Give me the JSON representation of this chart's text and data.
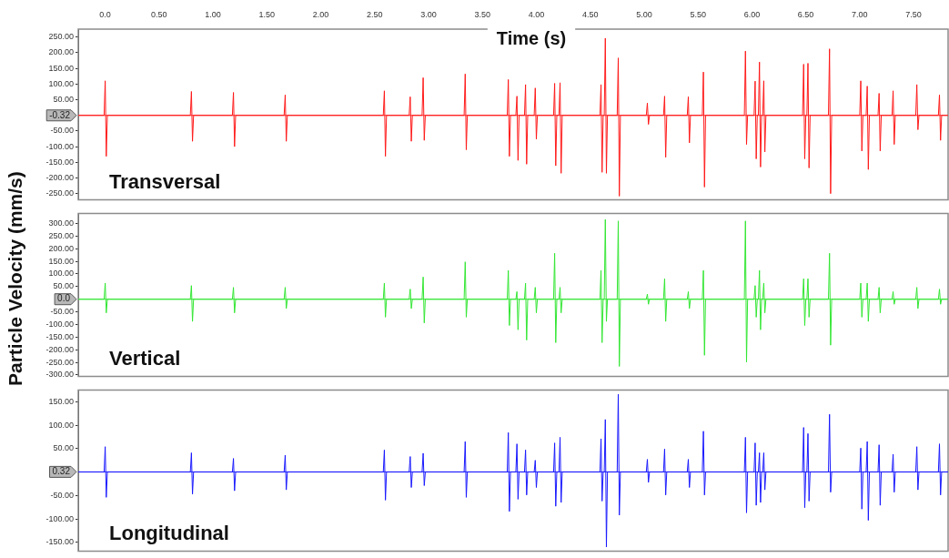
{
  "chart_data": [
    {
      "type": "line",
      "xlabel": "Time (s)",
      "xlim": [
        -0.25,
        7.82
      ],
      "xticks": [
        {
          "value": 0,
          "label": "0.0"
        },
        {
          "value": 0.5,
          "label": "0.50"
        },
        {
          "value": 1,
          "label": "1.00"
        },
        {
          "value": 1.5,
          "label": "1.50"
        },
        {
          "value": 2,
          "label": "2.00"
        },
        {
          "value": 2.5,
          "label": "2.50"
        },
        {
          "value": 3,
          "label": "3.00"
        },
        {
          "value": 3.5,
          "label": "3.50"
        },
        {
          "value": 4,
          "label": "4.00"
        },
        {
          "value": 4.5,
          "label": "4.50"
        },
        {
          "value": 5,
          "label": "5.00"
        },
        {
          "value": 5.5,
          "label": "5.50"
        },
        {
          "value": 6,
          "label": "6.00"
        },
        {
          "value": 6.5,
          "label": "6.50"
        },
        {
          "value": 7,
          "label": "7.00"
        },
        {
          "value": 7.5,
          "label": "7.50"
        }
      ],
      "ylim": [
        -270,
        275
      ],
      "yticks": [
        {
          "value": 250,
          "label": "250.00"
        },
        {
          "value": 200,
          "label": "200.00"
        },
        {
          "value": 150,
          "label": "150.00"
        },
        {
          "value": 100,
          "label": "100.00"
        },
        {
          "value": 50,
          "label": "50.00"
        },
        {
          "value": -50,
          "label": "-50.00"
        },
        {
          "value": -100,
          "label": "-100.00"
        },
        {
          "value": -150,
          "label": "-150.00"
        },
        {
          "value": -200,
          "label": "-200.00"
        },
        {
          "value": -250,
          "label": "-250.00"
        }
      ],
      "ref_lines": [
        {
          "axis": "y",
          "value": -0.32,
          "label": "-0.32",
          "color": "#ff1a1a"
        }
      ],
      "x": [
        -0.25,
        -0.01,
        0,
        0.01,
        0.02,
        0.79,
        0.8,
        0.81,
        0.82,
        1.18,
        1.19,
        1.2,
        1.21,
        1.66,
        1.67,
        1.68,
        1.69,
        2.58,
        2.59,
        2.6,
        2.61,
        2.82,
        2.83,
        2.84,
        2.85,
        2.94,
        2.95,
        2.96,
        2.97,
        3.33,
        3.34,
        3.35,
        3.36,
        3.73,
        3.74,
        3.75,
        3.76,
        3.81,
        3.82,
        3.83,
        3.84,
        3.89,
        3.9,
        3.91,
        3.92,
        3.98,
        3.99,
        4,
        4.01,
        4.16,
        4.17,
        4.18,
        4.19,
        4.21,
        4.22,
        4.23,
        4.24,
        4.59,
        4.6,
        4.61,
        4.62,
        4.63,
        4.64,
        4.65,
        4.66,
        4.75,
        4.76,
        4.77,
        4.78,
        5.02,
        5.03,
        5.04,
        5.05,
        5.18,
        5.19,
        5.2,
        5.21,
        5.4,
        5.41,
        5.42,
        5.43,
        5.54,
        5.55,
        5.56,
        5.57,
        5.93,
        5.94,
        5.95,
        5.96,
        6.02,
        6.03,
        6.04,
        6.05,
        6.06,
        6.07,
        6.08,
        6.09,
        6.1,
        6.11,
        6.12,
        6.13,
        6.47,
        6.48,
        6.49,
        6.5,
        6.51,
        6.52,
        6.53,
        6.54,
        6.71,
        6.72,
        6.73,
        6.74,
        7,
        7.01,
        7.02,
        7.03,
        7.06,
        7.07,
        7.08,
        7.09,
        7.17,
        7.18,
        7.19,
        7.2,
        7.3,
        7.31,
        7.32,
        7.33,
        7.52,
        7.53,
        7.54,
        7.55,
        7.73,
        7.74,
        7.75,
        7.76,
        7.82
      ],
      "series": [
        {
          "name": "Transversal",
          "color": "#ff1a1a",
          "values": [
            0,
            0,
            110,
            -131,
            0,
            0,
            76,
            -83,
            0,
            0,
            73,
            -100,
            0,
            0,
            65,
            -83,
            0,
            0,
            78,
            -131,
            0,
            0,
            59,
            -83,
            0,
            0,
            120,
            -80,
            0,
            0,
            132,
            -110,
            0,
            0,
            114,
            -131,
            0,
            0,
            61,
            -144,
            0,
            0,
            98,
            -156,
            0,
            0,
            87,
            -76,
            0,
            0,
            102,
            -161,
            0,
            0,
            104,
            -185,
            0,
            0,
            98,
            -182,
            0,
            0,
            246,
            -185,
            0,
            0,
            183,
            -258,
            0,
            0,
            39,
            -29,
            0,
            0,
            61,
            -134,
            0,
            0,
            59,
            -88,
            0,
            0,
            138,
            -229,
            0,
            0,
            205,
            -93,
            0,
            0,
            109,
            -139,
            0,
            0,
            170,
            -165,
            0,
            0,
            110,
            -117,
            0,
            0,
            163,
            -139,
            0,
            0,
            166,
            -168,
            0,
            0,
            212,
            -250,
            0,
            0,
            110,
            -114,
            0,
            0,
            93,
            -173,
            0,
            0,
            70,
            -114,
            0,
            0,
            78,
            -93,
            0,
            0,
            98,
            -46,
            0,
            0,
            65,
            -80,
            0,
            0
          ]
        }
      ]
    },
    {
      "type": "line",
      "ylabel": "Particle Velocity (mm/s)",
      "xlim": [
        -0.25,
        7.82
      ],
      "tick_labels": "y",
      "ylim": [
        -306,
        340
      ],
      "yticks": [
        {
          "value": 300,
          "label": "300.00"
        },
        {
          "value": 250,
          "label": "250.00"
        },
        {
          "value": 200,
          "label": "200.00"
        },
        {
          "value": 150,
          "label": "150.00"
        },
        {
          "value": 100,
          "label": "100.00"
        },
        {
          "value": 50,
          "label": "50.00"
        },
        {
          "value": -50,
          "label": "-50.00"
        },
        {
          "value": -100,
          "label": "-100.00"
        },
        {
          "value": -150,
          "label": "-150.00"
        },
        {
          "value": -200,
          "label": "-200.00"
        },
        {
          "value": -250,
          "label": "-250.00"
        },
        {
          "value": -300,
          "label": "-300.00"
        }
      ],
      "ref_lines": [
        {
          "axis": "y",
          "value": 0,
          "label": "0.0",
          "color": "#33e633"
        }
      ],
      "x": [
        -0.25,
        -0.01,
        0,
        0.01,
        0.02,
        0.79,
        0.8,
        0.81,
        0.82,
        1.18,
        1.19,
        1.2,
        1.21,
        1.66,
        1.67,
        1.68,
        1.69,
        2.58,
        2.59,
        2.6,
        2.61,
        2.82,
        2.83,
        2.84,
        2.85,
        2.94,
        2.95,
        2.96,
        2.97,
        3.33,
        3.34,
        3.35,
        3.36,
        3.73,
        3.74,
        3.75,
        3.76,
        3.81,
        3.82,
        3.83,
        3.84,
        3.89,
        3.9,
        3.91,
        3.92,
        3.98,
        3.99,
        4,
        4.01,
        4.16,
        4.17,
        4.18,
        4.19,
        4.21,
        4.22,
        4.23,
        4.24,
        4.59,
        4.6,
        4.61,
        4.62,
        4.63,
        4.64,
        4.65,
        4.66,
        4.75,
        4.76,
        4.77,
        4.78,
        5.02,
        5.03,
        5.04,
        5.05,
        5.18,
        5.19,
        5.2,
        5.21,
        5.4,
        5.41,
        5.42,
        5.43,
        5.54,
        5.55,
        5.56,
        5.57,
        5.93,
        5.94,
        5.95,
        5.96,
        6.02,
        6.03,
        6.04,
        6.05,
        6.06,
        6.07,
        6.08,
        6.09,
        6.1,
        6.11,
        6.12,
        6.13,
        6.47,
        6.48,
        6.49,
        6.5,
        6.51,
        6.52,
        6.53,
        6.54,
        6.71,
        6.72,
        6.73,
        6.74,
        7,
        7.01,
        7.02,
        7.03,
        7.06,
        7.07,
        7.08,
        7.09,
        7.17,
        7.18,
        7.19,
        7.2,
        7.3,
        7.31,
        7.32,
        7.33,
        7.52,
        7.53,
        7.54,
        7.55,
        7.73,
        7.74,
        7.75,
        7.76,
        7.82
      ],
      "series": [
        {
          "name": "Vertical",
          "color": "#33e633",
          "values": [
            0,
            0,
            64,
            -54,
            0,
            0,
            54,
            -88,
            0,
            0,
            47,
            -54,
            0,
            0,
            47,
            -37,
            0,
            0,
            64,
            -71,
            0,
            0,
            40,
            -37,
            0,
            0,
            88,
            -94,
            0,
            0,
            148,
            -71,
            0,
            0,
            114,
            -104,
            0,
            0,
            30,
            -121,
            0,
            0,
            64,
            -162,
            0,
            0,
            47,
            -54,
            0,
            0,
            182,
            -172,
            0,
            0,
            47,
            -54,
            0,
            0,
            114,
            -172,
            0,
            0,
            316,
            -88,
            0,
            0,
            310,
            -266,
            0,
            0,
            20,
            -20,
            0,
            0,
            81,
            -88,
            0,
            0,
            30,
            -37,
            0,
            0,
            114,
            -222,
            0,
            0,
            310,
            -249,
            0,
            0,
            54,
            -71,
            0,
            0,
            114,
            -121,
            0,
            0,
            64,
            -54,
            0,
            0,
            81,
            -104,
            0,
            0,
            81,
            -71,
            0,
            0,
            182,
            -182,
            0,
            0,
            64,
            -71,
            0,
            0,
            64,
            -88,
            0,
            0,
            47,
            -54,
            0,
            0,
            30,
            -20,
            0,
            0,
            47,
            -37,
            0,
            0,
            40,
            -20,
            0,
            0
          ]
        }
      ]
    },
    {
      "type": "line",
      "xlim": [
        -0.25,
        7.82
      ],
      "tick_labels": "y",
      "ylim": [
        -169,
        175
      ],
      "yticks": [
        {
          "value": 150,
          "label": "150.00"
        },
        {
          "value": 100,
          "label": "100.00"
        },
        {
          "value": 50,
          "label": "50.00"
        },
        {
          "value": -50,
          "label": "-50.00"
        },
        {
          "value": -100,
          "label": "-100.00"
        },
        {
          "value": -150,
          "label": "-150.00"
        }
      ],
      "ref_lines": [
        {
          "axis": "y",
          "value": 0.32,
          "label": "0.32",
          "color": "#1a1aff"
        }
      ],
      "x": [
        -0.25,
        -0.01,
        0,
        0.01,
        0.02,
        0.79,
        0.8,
        0.81,
        0.82,
        1.18,
        1.19,
        1.2,
        1.21,
        1.66,
        1.67,
        1.68,
        1.69,
        2.58,
        2.59,
        2.6,
        2.61,
        2.82,
        2.83,
        2.84,
        2.85,
        2.94,
        2.95,
        2.96,
        2.97,
        3.33,
        3.34,
        3.35,
        3.36,
        3.73,
        3.74,
        3.75,
        3.76,
        3.81,
        3.82,
        3.83,
        3.84,
        3.89,
        3.9,
        3.91,
        3.92,
        3.98,
        3.99,
        4,
        4.01,
        4.16,
        4.17,
        4.18,
        4.19,
        4.21,
        4.22,
        4.23,
        4.24,
        4.59,
        4.6,
        4.61,
        4.62,
        4.63,
        4.64,
        4.65,
        4.66,
        4.75,
        4.76,
        4.77,
        4.78,
        5.02,
        5.03,
        5.04,
        5.05,
        5.18,
        5.19,
        5.2,
        5.21,
        5.4,
        5.41,
        5.42,
        5.43,
        5.54,
        5.55,
        5.56,
        5.57,
        5.93,
        5.94,
        5.95,
        5.96,
        6.02,
        6.03,
        6.04,
        6.05,
        6.06,
        6.07,
        6.08,
        6.09,
        6.1,
        6.11,
        6.12,
        6.13,
        6.47,
        6.48,
        6.49,
        6.5,
        6.51,
        6.52,
        6.53,
        6.54,
        6.71,
        6.72,
        6.73,
        6.74,
        7,
        7.01,
        7.02,
        7.03,
        7.06,
        7.07,
        7.08,
        7.09,
        7.17,
        7.18,
        7.19,
        7.2,
        7.3,
        7.31,
        7.32,
        7.33,
        7.52,
        7.53,
        7.54,
        7.55,
        7.73,
        7.74,
        7.75,
        7.76,
        7.82
      ],
      "series": [
        {
          "name": "Longitudinal",
          "color": "#1a1aff",
          "values": [
            0,
            0,
            54,
            -54,
            0,
            0,
            41,
            -47,
            0,
            0,
            29,
            -40,
            0,
            0,
            36,
            -38,
            0,
            0,
            47,
            -60,
            0,
            0,
            33,
            -33,
            0,
            0,
            40,
            -29,
            0,
            0,
            65,
            -54,
            0,
            0,
            84,
            -84,
            0,
            0,
            60,
            -58,
            0,
            0,
            47,
            -49,
            0,
            0,
            25,
            -33,
            0,
            0,
            62,
            -73,
            0,
            0,
            74,
            -65,
            0,
            0,
            71,
            -62,
            0,
            0,
            112,
            -160,
            0,
            0,
            166,
            -92,
            0,
            0,
            27,
            -22,
            0,
            0,
            49,
            -49,
            0,
            0,
            27,
            -33,
            0,
            0,
            87,
            -49,
            0,
            0,
            74,
            -87,
            0,
            0,
            62,
            -71,
            0,
            0,
            41,
            -65,
            0,
            0,
            41,
            -38,
            0,
            0,
            95,
            -76,
            0,
            0,
            82,
            -62,
            0,
            0,
            123,
            -43,
            0,
            0,
            51,
            -79,
            0,
            0,
            65,
            -103,
            0,
            0,
            58,
            -71,
            0,
            0,
            38,
            -43,
            0,
            0,
            54,
            -38,
            0,
            0,
            60,
            -49,
            0,
            0
          ]
        }
      ]
    }
  ]
}
